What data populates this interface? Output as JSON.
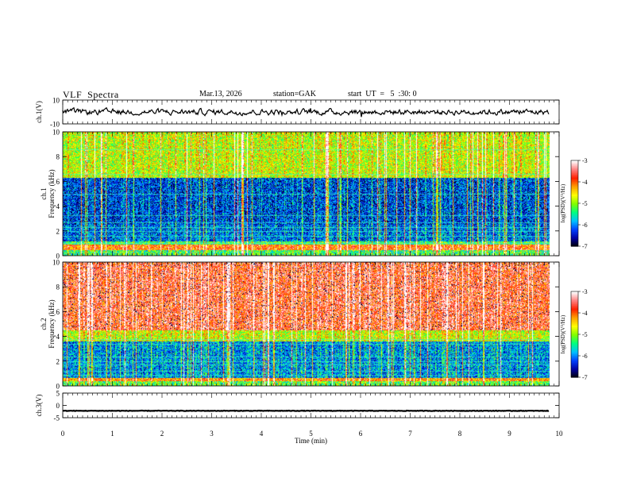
{
  "header": {
    "title": "VLF  Spectra",
    "date": "Mar.13, 2026",
    "station": "station=GAK",
    "start_ut": "start  UT  =   5  :30: 0"
  },
  "chart_data": [
    {
      "type": "line",
      "ylabel": "ch.1(V)",
      "ylim": [
        -10,
        10
      ],
      "yticks": [
        "10",
        "-10"
      ],
      "description_level": "noisy waveform around 0 V, amplitude about ±3 V",
      "x_range": [
        0,
        9.8
      ],
      "y_center": 0,
      "y_amplitude": 3
    },
    {
      "type": "heatmap",
      "ylabel_top": "ch.1",
      "ylabel": "Frequency  (kHz)",
      "ylim": [
        0,
        10
      ],
      "yticks": [
        "0",
        "2",
        "4",
        "6",
        "8",
        "10"
      ],
      "x_range": [
        0,
        9.8
      ],
      "colorbar": {
        "label": "log(PSD)(V²/Hz)",
        "range": [
          -7,
          -3
        ],
        "ticks": [
          "-3",
          "-4",
          "-5",
          "-6",
          "-7"
        ],
        "colors": [
          "#000000",
          "#0000a0",
          "#0040ff",
          "#00c0ff",
          "#00ff80",
          "#80ff00",
          "#ffff00",
          "#ffa000",
          "#ff2000",
          "#ff8080",
          "#ffffff"
        ]
      }
    },
    {
      "type": "heatmap",
      "ylabel_top": "ch.2",
      "ylabel": "Frequency  (kHz)",
      "ylim": [
        0,
        10
      ],
      "yticks": [
        "0",
        "2",
        "4",
        "6",
        "8",
        "10"
      ],
      "x_range": [
        0,
        9.8
      ],
      "colorbar": {
        "label": "log(PSD)(V²/Hz)",
        "range": [
          -7,
          -3
        ],
        "ticks": [
          "-3",
          "-4",
          "-5",
          "-6",
          "-7"
        ],
        "colors": [
          "#000000",
          "#0000a0",
          "#0040ff",
          "#00c0ff",
          "#00ff80",
          "#80ff00",
          "#ffff00",
          "#ffa000",
          "#ff2000",
          "#ff8080",
          "#ffffff"
        ]
      }
    },
    {
      "type": "line",
      "ylabel": "ch.3(V)",
      "ylim": [
        -5,
        5
      ],
      "yticks": [
        "5",
        "0",
        "-5"
      ],
      "x_range": [
        0,
        9.8
      ],
      "y_center": -2.2,
      "y_amplitude": 0.2
    }
  ],
  "xaxis": {
    "label": "Time  (min)",
    "xlim": [
      0,
      10
    ],
    "ticks": [
      "0",
      "1",
      "2",
      "3",
      "4",
      "5",
      "6",
      "7",
      "8",
      "9",
      "10"
    ]
  }
}
